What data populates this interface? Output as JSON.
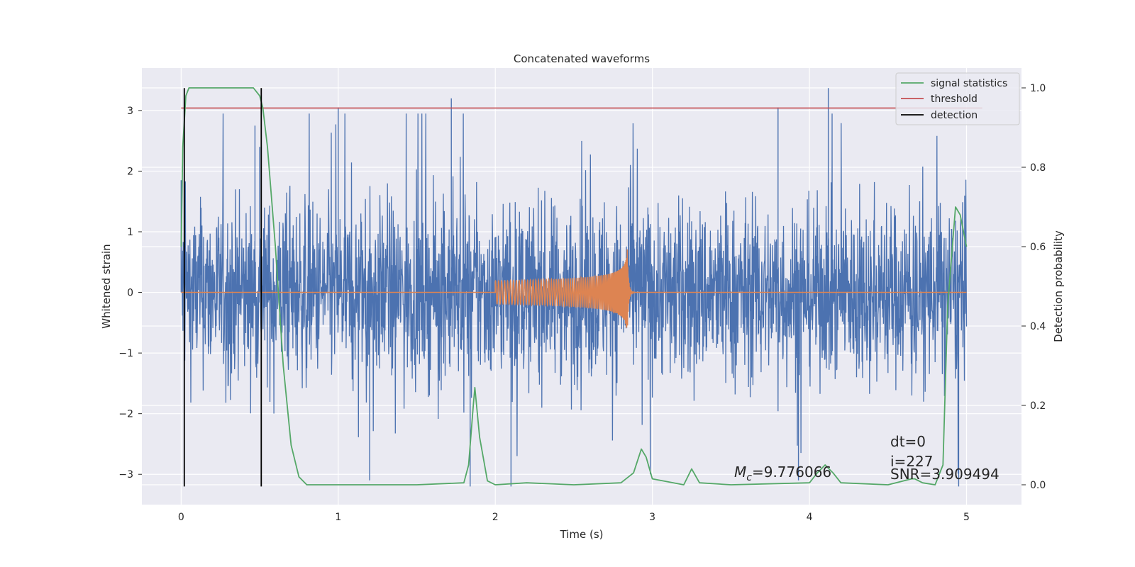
{
  "chart_data": {
    "type": "line",
    "title": "Concatenated waveforms",
    "xlabel": "Time (s)",
    "ylabel_left": "Whitened strain",
    "ylabel_right": "Detection probability",
    "xlim": [
      -0.25,
      5.35
    ],
    "ylim_left": [
      -3.5,
      3.7
    ],
    "ylim_right": [
      -0.05,
      1.05
    ],
    "xticks": [
      0,
      1,
      2,
      3,
      4,
      5
    ],
    "xtick_labels": [
      "0",
      "1",
      "2",
      "3",
      "4",
      "5"
    ],
    "yticks_left": [
      -3,
      -2,
      -1,
      0,
      1,
      2,
      3
    ],
    "ytick_labels_left": [
      "−3",
      "−2",
      "−1",
      "0",
      "1",
      "2",
      "3"
    ],
    "yticks_right": [
      0.0,
      0.2,
      0.4,
      0.6,
      0.8,
      1.0
    ],
    "ytick_labels_right": [
      "0.0",
      "0.2",
      "0.4",
      "0.6",
      "0.8",
      "1.0"
    ],
    "grid": true,
    "legend_position": "top-right",
    "legend": [
      "signal statistics",
      "threshold",
      "detection"
    ],
    "colors": {
      "background": "#eaeaf2",
      "grid": "#ffffff",
      "strain": "#4c72b0",
      "template": "#dd8452",
      "signal_statistics": "#55a868",
      "threshold": "#c44e52",
      "detection": "#000000"
    },
    "series": [
      {
        "name": "signal statistics",
        "axis": "right",
        "x": [
          0.0,
          0.01,
          0.03,
          0.05,
          0.08,
          0.12,
          0.2,
          0.3,
          0.4,
          0.46,
          0.5,
          0.52,
          0.55,
          0.6,
          0.65,
          0.7,
          0.75,
          0.8,
          1.0,
          1.2,
          1.5,
          1.8,
          1.83,
          1.86,
          1.87,
          1.9,
          1.95,
          2.0,
          2.2,
          2.5,
          2.8,
          2.88,
          2.93,
          2.96,
          3.0,
          3.2,
          3.25,
          3.3,
          3.5,
          4.0,
          4.05,
          4.1,
          4.15,
          4.2,
          4.5,
          4.65,
          4.67,
          4.72,
          4.8,
          4.85,
          4.88,
          4.93,
          4.96,
          5.0
        ],
        "values": [
          0.6,
          0.85,
          0.98,
          1.0,
          1.0,
          1.0,
          1.0,
          1.0,
          1.0,
          1.0,
          0.98,
          0.95,
          0.85,
          0.6,
          0.3,
          0.1,
          0.02,
          0.0,
          0.0,
          0.0,
          0.0,
          0.005,
          0.05,
          0.2,
          0.245,
          0.12,
          0.01,
          0.0,
          0.005,
          0.0,
          0.005,
          0.03,
          0.09,
          0.07,
          0.015,
          0.0,
          0.04,
          0.005,
          0.0,
          0.005,
          0.03,
          0.05,
          0.03,
          0.005,
          0.0,
          0.015,
          0.015,
          0.005,
          0.0,
          0.05,
          0.45,
          0.7,
          0.68,
          0.6
        ]
      },
      {
        "name": "threshold",
        "axis": "left",
        "x": [
          0.0,
          5.1
        ],
        "values": [
          3.04,
          3.04
        ]
      },
      {
        "name": "detection",
        "axis": "left",
        "x": [
          0.02,
          0.51
        ],
        "y_range": [
          -3.2,
          3.37
        ]
      },
      {
        "name": "strain",
        "axis": "left",
        "x_range": [
          0.0,
          5.0
        ],
        "amplitude_typical": 0.7,
        "peaks": [
          {
            "x": 0.0,
            "value": 1.85
          },
          {
            "x": 0.47,
            "value": 2.75
          },
          {
            "x": 0.5,
            "value": 2.4
          },
          {
            "x": 1.0,
            "value": 3.05
          },
          {
            "x": 1.72,
            "value": 3.2
          },
          {
            "x": 3.8,
            "value": 3.05
          },
          {
            "x": 4.12,
            "value": 3.37
          },
          {
            "x": 1.2,
            "value": -3.1
          },
          {
            "x": 1.84,
            "value": -3.2
          },
          {
            "x": 2.1,
            "value": -3.2
          },
          {
            "x": 3.93,
            "value": -3.1
          },
          {
            "x": 4.95,
            "value": -3.2
          }
        ]
      },
      {
        "name": "template",
        "axis": "left",
        "x_range": [
          0.0,
          5.0
        ],
        "chirp_start": 2.0,
        "merger": 2.84,
        "ringdown_end": 2.95,
        "peak_amplitude": 0.72
      }
    ],
    "annotations": {
      "chirp_mass": "=9.776066",
      "chirp_mass_symbol": "M",
      "chirp_mass_subscript": "c",
      "dt": "dt=0",
      "index": "i=227",
      "snr": "SNR=3.909494"
    }
  }
}
